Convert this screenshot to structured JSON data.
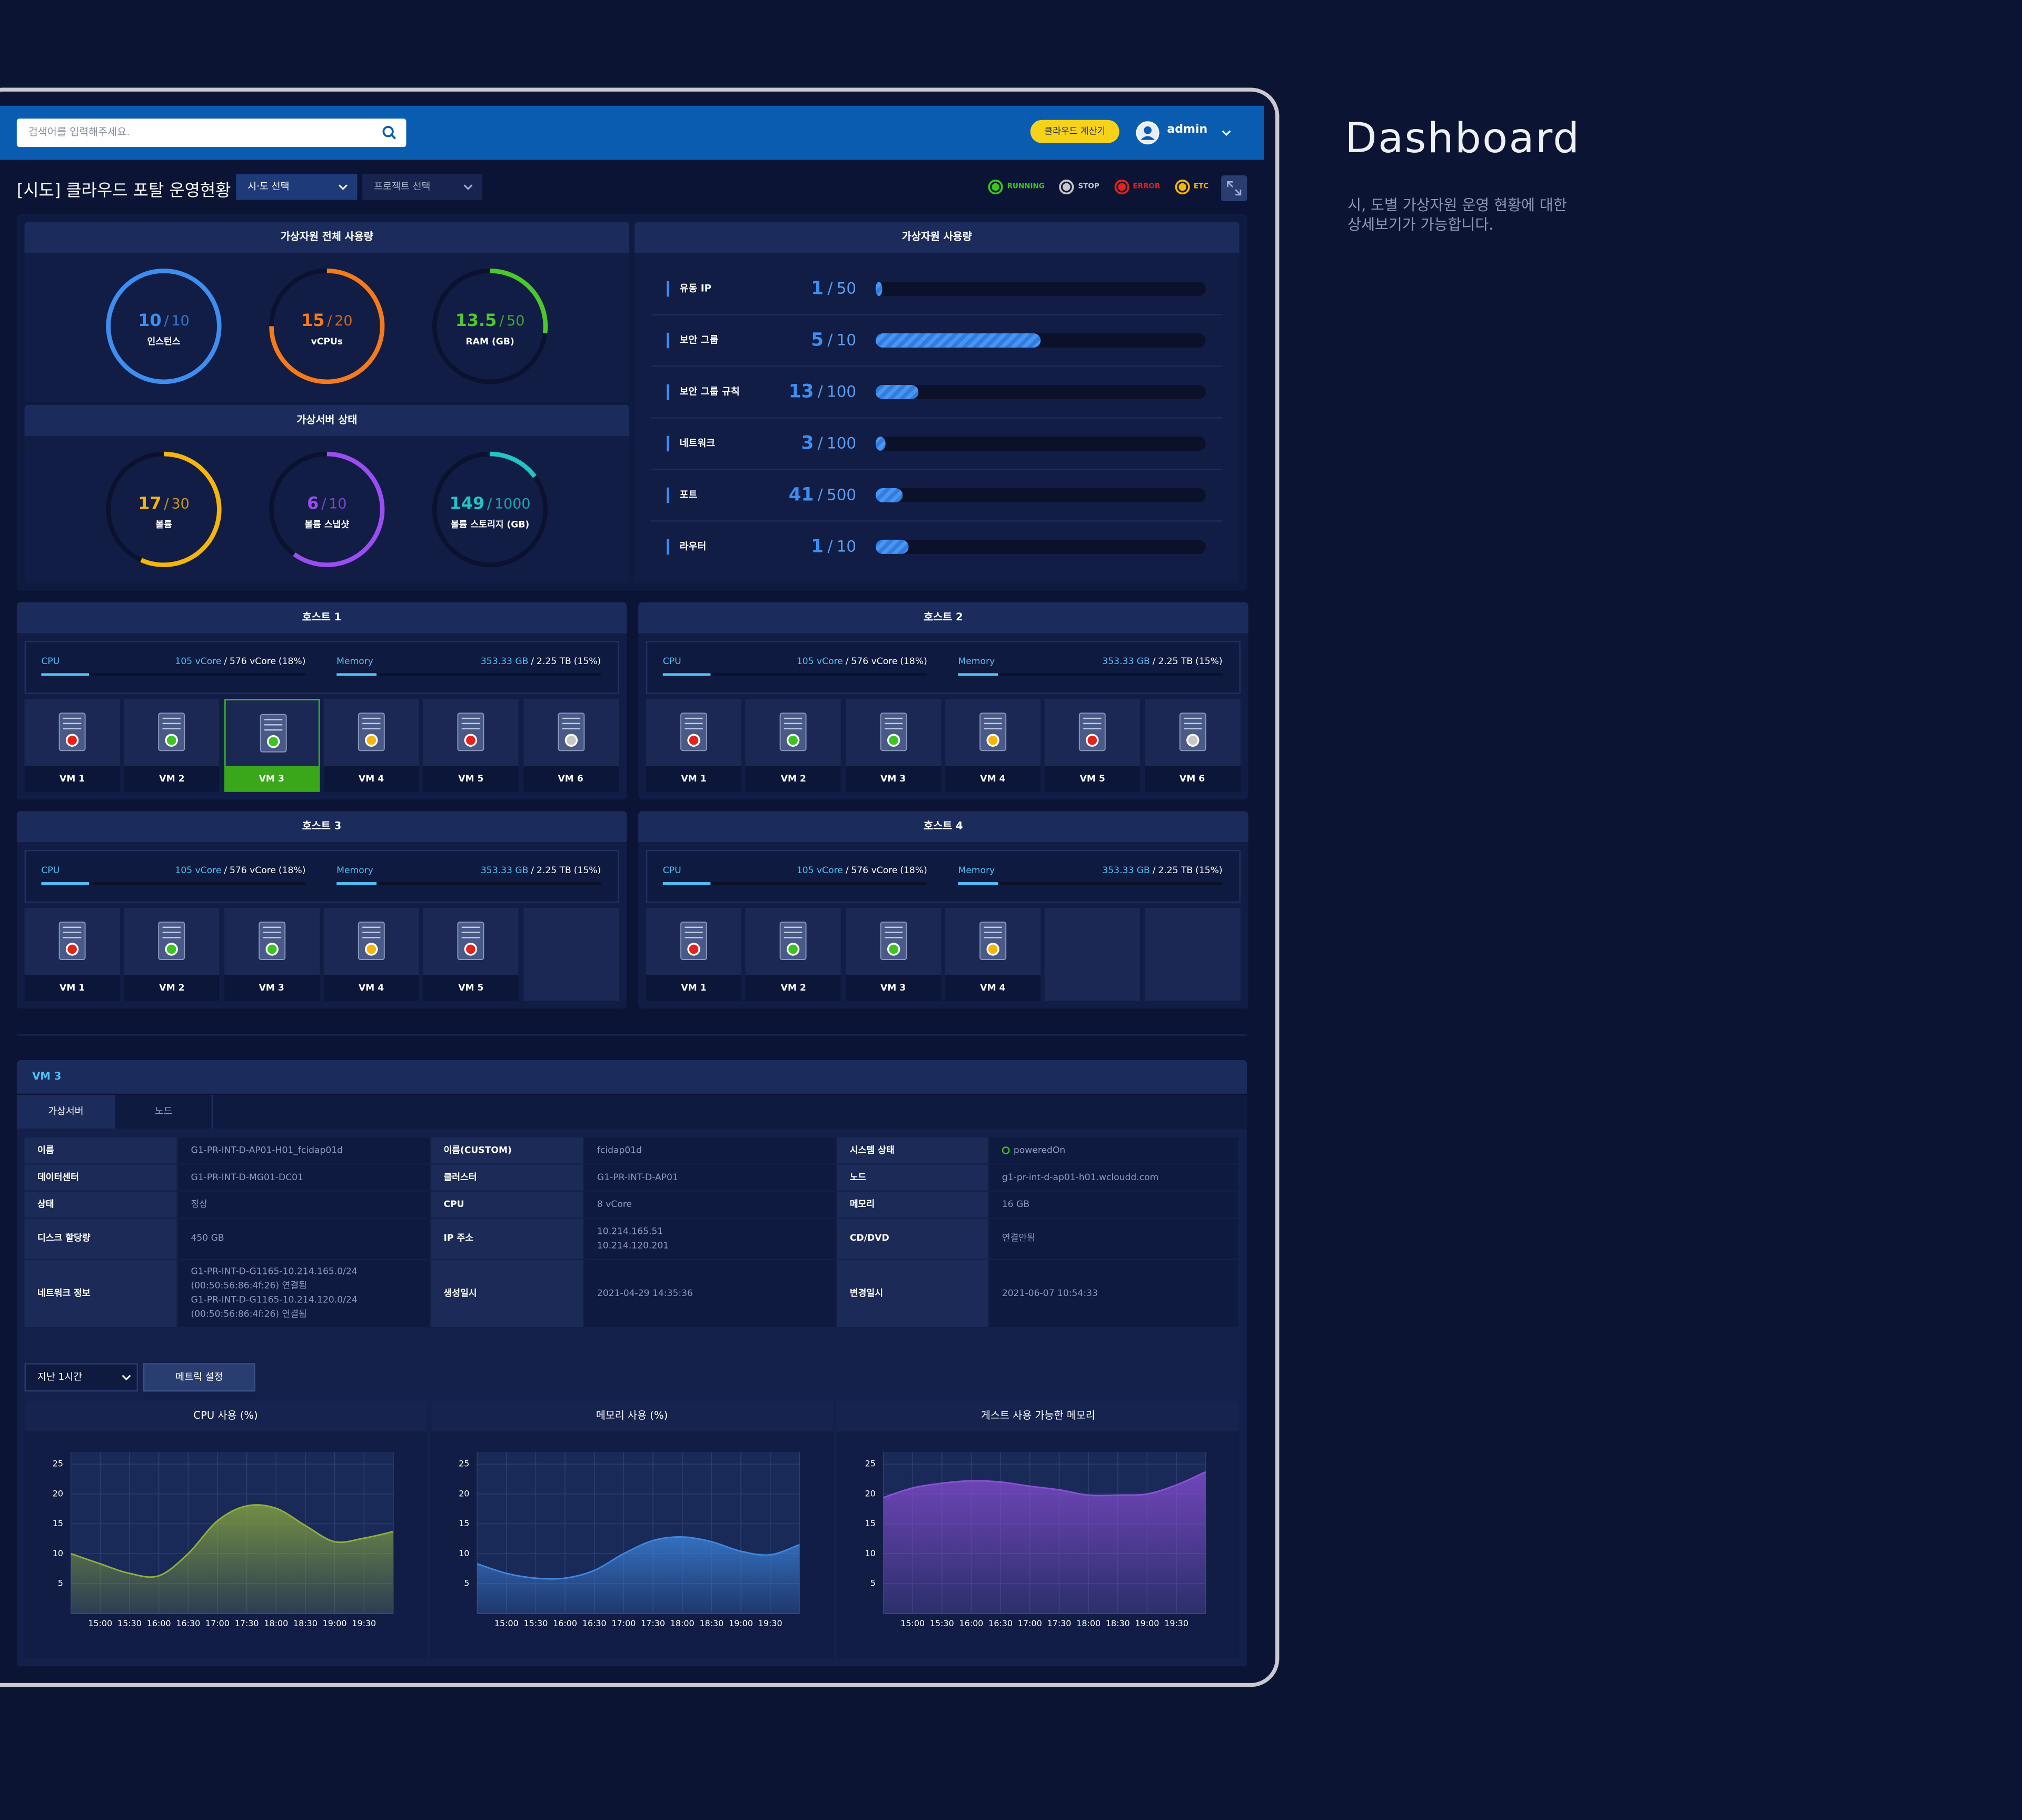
{
  "header": {
    "search_placeholder": "검색어를 입력해주세요.",
    "calc_button": "클라우드 계산기",
    "user": "admin"
  },
  "title": "[시도] 클라우드 포탈 운영현황",
  "filters": [
    "시·도 선택",
    "프로젝트 선택"
  ],
  "legend": [
    {
      "label": "RUNNING",
      "color": "#3cc41f"
    },
    {
      "label": "STOP",
      "color": "#c7c7c7"
    },
    {
      "label": "ERROR",
      "color": "#e5231b"
    },
    {
      "label": "ETC",
      "color": "#f5b50a"
    }
  ],
  "side": {
    "title": "Dashboard",
    "description": [
      "시, 도별 가상자원 운영 현황에 대한",
      "상세보기가 가능합니다."
    ]
  },
  "separator": "/",
  "usage": {
    "title": "가상자원 전체 사용량",
    "gauges": [
      {
        "label": "인스턴스",
        "value": 10,
        "max": 10,
        "color": "#3d8ef0"
      },
      {
        "label": "vCPUs",
        "value": 15,
        "max": 20,
        "color": "#f57a1a"
      },
      {
        "label": "RAM (GB)",
        "value": 13.5,
        "max": 50,
        "color": "#4cc82a"
      }
    ]
  },
  "server_status": {
    "title": "가상서버 상태",
    "gauges": [
      {
        "label": "볼륨",
        "value": 17,
        "max": 30,
        "color": "#f5b50a"
      },
      {
        "label": "볼륨 스냅샷",
        "value": 6,
        "max": 10,
        "color": "#9a4df0"
      },
      {
        "label": "볼륨 스토리지 (GB)",
        "value": 149,
        "max": 1000,
        "color": "#22c4c4"
      }
    ]
  },
  "resources": {
    "title": "가상자원 사용량",
    "items": [
      {
        "label": "유동 IP",
        "value": 1,
        "max": 50
      },
      {
        "label": "보안 그룹",
        "value": 5,
        "max": 10
      },
      {
        "label": "보안 그룹 규칙",
        "value": 13,
        "max": 100
      },
      {
        "label": "네트워크",
        "value": 3,
        "max": 100
      },
      {
        "label": "포트",
        "value": 41,
        "max": 500
      },
      {
        "label": "라우터",
        "value": 1,
        "max": 10
      }
    ]
  },
  "hosts": [
    {
      "title": "호스트 1",
      "cpu": {
        "label": "CPU",
        "used": "105 vCore",
        "total": "576 vCore",
        "percent": 18,
        "percent_label": "(18%)"
      },
      "memory": {
        "label": "Memory",
        "used": "353.33 GB",
        "total": "2.25 TB",
        "percent": 15,
        "percent_label": "(15%)"
      },
      "vms": [
        {
          "name": "VM 1",
          "color": "#e5231b"
        },
        {
          "name": "VM 2",
          "color": "#3cc41f"
        },
        {
          "name": "VM 3",
          "color": "#3cc41f",
          "selected": true
        },
        {
          "name": "VM 4",
          "color": "#f5b50a"
        },
        {
          "name": "VM 5",
          "color": "#e5231b"
        },
        {
          "name": "VM 6",
          "color": "#c7c7c7"
        }
      ]
    },
    {
      "title": "호스트 2",
      "cpu": {
        "label": "CPU",
        "used": "105 vCore",
        "total": "576 vCore",
        "percent": 18,
        "percent_label": "(18%)"
      },
      "memory": {
        "label": "Memory",
        "used": "353.33 GB",
        "total": "2.25 TB",
        "percent": 15,
        "percent_label": "(15%)"
      },
      "vms": [
        {
          "name": "VM 1",
          "color": "#e5231b"
        },
        {
          "name": "VM 2",
          "color": "#3cc41f"
        },
        {
          "name": "VM 3",
          "color": "#3cc41f"
        },
        {
          "name": "VM 4",
          "color": "#f5b50a"
        },
        {
          "name": "VM 5",
          "color": "#e5231b"
        },
        {
          "name": "VM 6",
          "color": "#c7c7c7"
        }
      ]
    },
    {
      "title": "호스트 3",
      "cpu": {
        "label": "CPU",
        "used": "105 vCore",
        "total": "576 vCore",
        "percent": 18,
        "percent_label": "(18%)"
      },
      "memory": {
        "label": "Memory",
        "used": "353.33 GB",
        "total": "2.25 TB",
        "percent": 15,
        "percent_label": "(15%)"
      },
      "vms": [
        {
          "name": "VM 1",
          "color": "#e5231b"
        },
        {
          "name": "VM 2",
          "color": "#3cc41f"
        },
        {
          "name": "VM 3",
          "color": "#3cc41f"
        },
        {
          "name": "VM 4",
          "color": "#f5b50a"
        },
        {
          "name": "VM 5",
          "color": "#e5231b"
        }
      ]
    },
    {
      "title": "호스트 4",
      "cpu": {
        "label": "CPU",
        "used": "105 vCore",
        "total": "576 vCore",
        "percent": 18,
        "percent_label": "(18%)"
      },
      "memory": {
        "label": "Memory",
        "used": "353.33 GB",
        "total": "2.25 TB",
        "percent": 15,
        "percent_label": "(15%)"
      },
      "vms": [
        {
          "name": "VM 1",
          "color": "#e5231b"
        },
        {
          "name": "VM 2",
          "color": "#3cc41f"
        },
        {
          "name": "VM 3",
          "color": "#3cc41f"
        },
        {
          "name": "VM 4",
          "color": "#f5b50a"
        }
      ]
    }
  ],
  "detail": {
    "title": "VM 3",
    "tabs": [
      "가상서버",
      "노드"
    ],
    "status_color": "#3cc41f",
    "rows": [
      [
        "이름",
        "G1-PR-INT-D-AP01-H01_fcidap01d",
        "이름(CUSTOM)",
        "fcidap01d",
        "시스템 상태",
        "poweredOn"
      ],
      [
        "데이터센터",
        "G1-PR-INT-D-MG01-DC01",
        "클러스터",
        "G1-PR-INT-D-AP01",
        "노드",
        "g1-pr-int-d-ap01-h01.wcloudd.com"
      ],
      [
        "상태",
        "정상",
        "CPU",
        "8 vCore",
        "메모리",
        "16 GB"
      ],
      [
        "디스크 할당량",
        "450 GB",
        "IP 주소",
        [
          "10.214.165.51",
          "10.214.120.201"
        ],
        "CD/DVD",
        "연결안됨"
      ],
      [
        "네트워크 정보",
        [
          "G1-PR-INT-D-G1165-10.214.165.0/24",
          "(00:50:56:86:4f:26) 연결됨",
          "G1-PR-INT-D-G1165-10.214.120.0/24",
          "(00:50:56:86:4f:26) 연결됨"
        ],
        "생성일시",
        "2021-04-29  14:35:36",
        "변경일시",
        "2021-06-07  10:54:33"
      ]
    ]
  },
  "controls": {
    "period": "지난 1시간",
    "metric_button": "메트릭 설정"
  },
  "chart_data": [
    {
      "type": "area",
      "title": "CPU 사용 (%)",
      "categories": [
        null,
        "15:00",
        "15:30",
        "16:00",
        "16:30",
        "17:00",
        "17:30",
        "18:00",
        "18:30",
        "19:00",
        "19:30",
        null
      ],
      "values": [
        10,
        8.3,
        6.7,
        6.3,
        10,
        15.5,
        18,
        17.6,
        14.7,
        12,
        12.6,
        13.7
      ],
      "color": "#8fae3c",
      "ylim": [
        0,
        27
      ],
      "yticks": [
        5,
        10,
        15,
        20,
        25
      ],
      "grid": true
    },
    {
      "type": "area",
      "title": "메모리 사용 (%)",
      "categories": [
        null,
        "15:00",
        "15:30",
        "16:00",
        "16:30",
        "17:00",
        "17:30",
        "18:00",
        "18:30",
        "19:00",
        "19:30",
        null
      ],
      "values": [
        8.3,
        6.7,
        5.9,
        5.9,
        7.2,
        10,
        12.2,
        12.8,
        12,
        10.4,
        9.8,
        11.5
      ],
      "color": "#3d86e0",
      "ylim": [
        0,
        27
      ],
      "yticks": [
        5,
        10,
        15,
        20,
        25
      ],
      "grid": true
    },
    {
      "type": "area",
      "title": "게스트 사용 가능한 메모리",
      "categories": [
        null,
        "15:00",
        "15:30",
        "16:00",
        "16:30",
        "17:00",
        "17:30",
        "18:00",
        "18:30",
        "19:00",
        "19:30",
        null
      ],
      "values": [
        19.4,
        21,
        21.8,
        22.2,
        22,
        21.3,
        20.7,
        19.8,
        19.8,
        20,
        21.5,
        23.7
      ],
      "color": "#8c4fd8",
      "ylim": [
        0,
        27
      ],
      "yticks": [
        5,
        10,
        15,
        20,
        25
      ],
      "grid": true
    }
  ]
}
